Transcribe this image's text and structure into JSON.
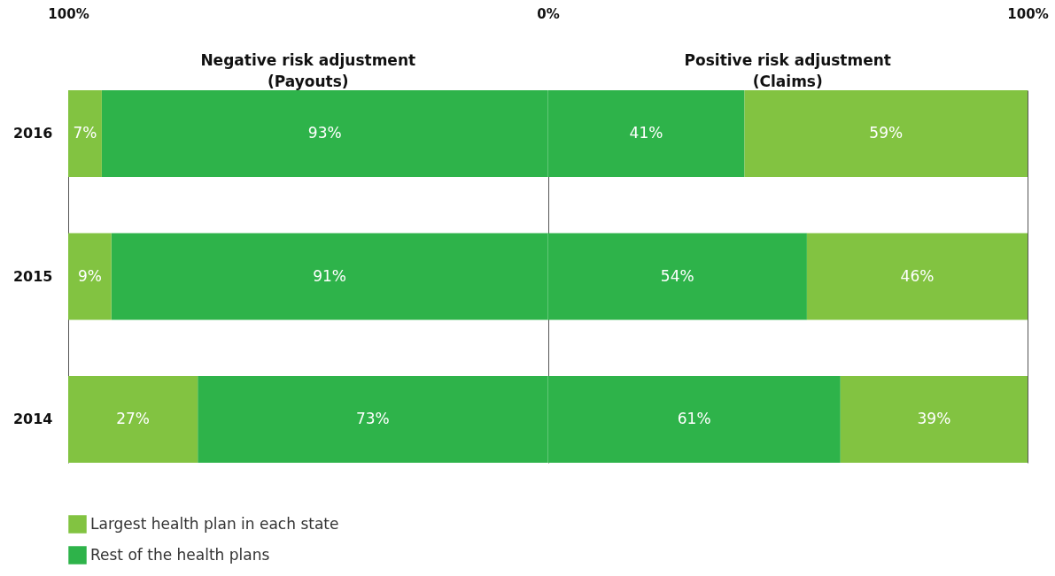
{
  "chart_data": {
    "type": "bar",
    "orientation": "horizontal",
    "categories": [
      "2016",
      "2015",
      "2014"
    ],
    "series": [
      {
        "name": "Rest of the health plans",
        "color": "#2eb34a",
        "values": [
          93,
          91,
          73
        ],
        "base": [
          -93,
          -91,
          -73
        ],
        "value_labels": [
          "93%",
          "91%",
          "73%"
        ]
      },
      {
        "name": "Largest health plan in each state",
        "color": "#82c341",
        "values": [
          7,
          9,
          27
        ],
        "base": [
          -100,
          -100,
          -100
        ],
        "value_labels": [
          "7%",
          "9%",
          "27%"
        ]
      },
      {
        "color": "#2eb34a",
        "values": [
          41,
          54,
          61
        ],
        "base": [
          0,
          0,
          0
        ],
        "value_labels": [
          "41%",
          "54%",
          "61%"
        ]
      },
      {
        "color": "#82c341",
        "values": [
          59,
          46,
          39
        ],
        "base": [
          41,
          54,
          61
        ],
        "value_labels": [
          "59%",
          "46%",
          "39%"
        ]
      }
    ],
    "xlim": [
      -100,
      100
    ],
    "xticks": [
      {
        "value": -100,
        "label": "100%"
      },
      {
        "value": 0,
        "label": "0%"
      },
      {
        "value": 100,
        "label": "100%"
      }
    ],
    "annotations": [
      "Negative risk adjustment\n(Payouts)",
      "Positive risk adjustment\n(Claims)"
    ],
    "grid": "x",
    "legend": "bottom left"
  }
}
